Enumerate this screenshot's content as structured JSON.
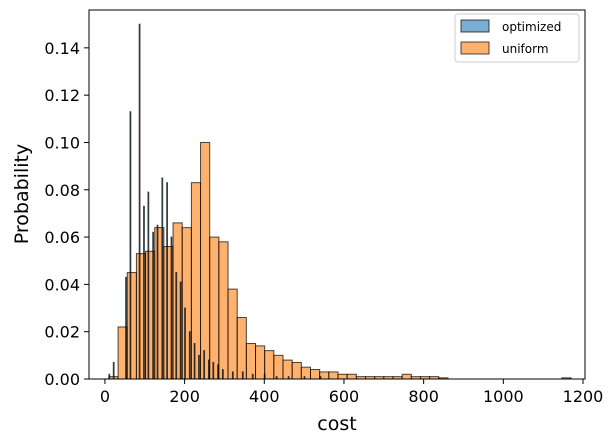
{
  "chart_data": {
    "type": "bar",
    "subtype": "histogram",
    "xlabel": "cost",
    "ylabel": "Probability",
    "xlim": [
      -40,
      1205
    ],
    "ylim": [
      0,
      0.156
    ],
    "xticks": [
      0,
      200,
      400,
      600,
      800,
      1000,
      1200
    ],
    "yticks": [
      0.0,
      0.02,
      0.04,
      0.06,
      0.08,
      0.1,
      0.12,
      0.14
    ],
    "ytick_labels": [
      "0.00",
      "0.02",
      "0.04",
      "0.06",
      "0.08",
      "0.10",
      "0.12",
      "0.14"
    ],
    "legend_position": "top-right",
    "grid": false,
    "series": [
      {
        "name": "optimized",
        "color": "#1f77b4",
        "alpha": 0.6,
        "bins": [
          [
            10,
            1.5,
            0.002
          ],
          [
            21,
            1.5,
            0.007
          ],
          [
            52,
            1.5,
            0.043
          ],
          [
            63,
            1.5,
            0.113
          ],
          [
            86,
            1.5,
            0.15
          ],
          [
            97,
            1.5,
            0.073
          ],
          [
            108,
            1.5,
            0.079
          ],
          [
            120,
            1.5,
            0.062
          ],
          [
            131,
            1.5,
            0.065
          ],
          [
            143,
            1.5,
            0.085
          ],
          [
            155,
            1.5,
            0.083
          ],
          [
            166,
            1.5,
            0.06
          ],
          [
            178,
            1.5,
            0.045
          ],
          [
            189,
            1.5,
            0.041
          ],
          [
            200,
            1.5,
            0.03
          ],
          [
            212,
            1.5,
            0.02
          ],
          [
            224,
            1.5,
            0.015
          ],
          [
            235,
            1.5,
            0.01
          ],
          [
            248,
            1.5,
            0.012
          ],
          [
            260,
            1.5,
            0.008
          ],
          [
            271,
            1.5,
            0.007
          ],
          [
            283,
            1.5,
            0.006
          ],
          [
            295,
            1.5,
            0.004
          ],
          [
            320,
            1.5,
            0.003
          ],
          [
            345,
            1.5,
            0.003
          ],
          [
            370,
            1.5,
            0.002
          ],
          [
            400,
            1.5,
            0.002
          ],
          [
            430,
            1.5,
            0.001
          ],
          [
            460,
            1.5,
            0.001
          ],
          [
            500,
            1.5,
            0.001
          ],
          [
            540,
            1.5,
            0.001
          ]
        ]
      },
      {
        "name": "uniform",
        "color": "#ff7f0e",
        "alpha": 0.6,
        "bins": [
          [
            10,
            23,
            0.001
          ],
          [
            33,
            23,
            0.022
          ],
          [
            56,
            23,
            0.045
          ],
          [
            79,
            23,
            0.053
          ],
          [
            102,
            23,
            0.054
          ],
          [
            125,
            23,
            0.064
          ],
          [
            148,
            23,
            0.056
          ],
          [
            171,
            23,
            0.066
          ],
          [
            194,
            23,
            0.064
          ],
          [
            217,
            23,
            0.083
          ],
          [
            240,
            23,
            0.1
          ],
          [
            263,
            23,
            0.06
          ],
          [
            286,
            23,
            0.058
          ],
          [
            309,
            23,
            0.038
          ],
          [
            332,
            23,
            0.026
          ],
          [
            355,
            23,
            0.015
          ],
          [
            378,
            23,
            0.014
          ],
          [
            401,
            23,
            0.012
          ],
          [
            424,
            23,
            0.01
          ],
          [
            447,
            23,
            0.008
          ],
          [
            470,
            23,
            0.007
          ],
          [
            493,
            23,
            0.005
          ],
          [
            516,
            23,
            0.004
          ],
          [
            539,
            23,
            0.003
          ],
          [
            562,
            23,
            0.003
          ],
          [
            585,
            23,
            0.002
          ],
          [
            608,
            23,
            0.002
          ],
          [
            631,
            23,
            0.001
          ],
          [
            654,
            23,
            0.001
          ],
          [
            677,
            23,
            0.001
          ],
          [
            700,
            23,
            0.001
          ],
          [
            723,
            23,
            0.001
          ],
          [
            746,
            23,
            0.002
          ],
          [
            769,
            23,
            0.001
          ],
          [
            792,
            23,
            0.001
          ],
          [
            815,
            23,
            0.001
          ],
          [
            838,
            23,
            0.0005
          ],
          [
            1147,
            23,
            0.0005
          ]
        ]
      }
    ]
  }
}
